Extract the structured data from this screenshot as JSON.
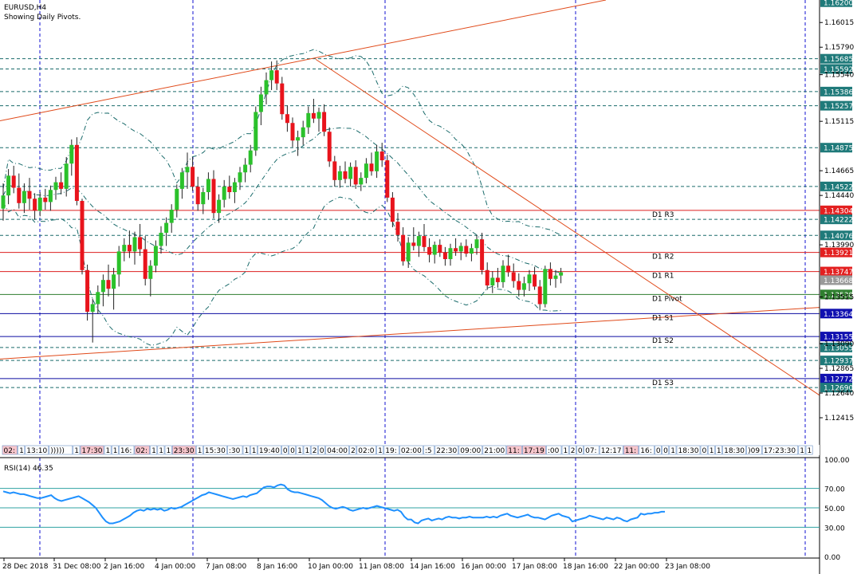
{
  "header": {
    "symbol": "EURUSD,H4",
    "subtitle": "Showing Daily Pivots."
  },
  "rsi": {
    "label": "RSI(14) 46.35",
    "levels": [
      70,
      50,
      30
    ],
    "axis_ticks": [
      "100.00",
      "70.00",
      "50.00",
      "30.00",
      "0.00"
    ],
    "values": [
      67,
      66,
      65,
      66,
      65,
      64,
      64,
      63,
      62,
      61,
      60,
      60,
      61,
      62,
      63,
      60,
      58,
      57,
      58,
      59,
      60,
      61,
      62,
      60,
      58,
      56,
      53,
      50,
      45,
      40,
      36,
      34,
      34,
      35,
      36,
      38,
      40,
      42,
      45,
      47,
      48,
      47,
      49,
      48,
      49,
      48,
      49,
      47,
      48,
      50,
      49,
      50,
      51,
      53,
      55,
      57,
      59,
      61,
      63,
      64,
      66,
      65,
      64,
      63,
      62,
      61,
      60,
      59,
      60,
      61,
      62,
      61,
      63,
      64,
      65,
      68,
      71,
      72,
      72,
      71,
      73,
      74,
      73,
      69,
      67,
      66,
      66,
      65,
      64,
      63,
      62,
      61,
      60,
      58,
      55,
      52,
      50,
      49,
      50,
      51,
      50,
      48,
      47,
      48,
      49,
      50,
      49,
      50,
      51,
      52,
      51,
      50,
      49,
      48,
      47,
      48,
      46,
      41,
      38,
      38,
      35,
      34,
      37,
      38,
      39,
      37,
      38,
      39,
      38,
      40,
      41,
      40,
      40,
      39,
      40,
      40,
      41,
      40,
      40,
      40,
      40,
      41,
      40,
      41,
      40,
      42,
      43,
      44,
      42,
      41,
      40,
      41,
      42,
      43,
      41,
      40,
      40,
      39,
      38,
      40,
      42,
      43,
      44,
      42,
      41,
      40,
      36,
      37,
      38,
      39,
      40,
      42,
      41,
      40,
      39,
      38,
      40,
      39,
      38,
      40,
      39,
      37,
      36,
      38,
      39,
      40,
      44,
      43,
      44,
      44,
      45,
      45,
      46,
      46
    ]
  },
  "price_axis": {
    "ticks": [
      "1.16015",
      "1.15790",
      "1.15540",
      "1.15115",
      "1.14665",
      "1.14440",
      "1.13990",
      "1.13515",
      "1.13090",
      "1.12865",
      "1.12640",
      "1.12415"
    ],
    "min": 1.1219,
    "max": 1.1622
  },
  "price_levels": [
    {
      "label": "1.16200",
      "value": 1.162,
      "style": "dark",
      "line": "none"
    },
    {
      "label": "1.15685",
      "value": 1.15685,
      "style": "teal",
      "line": "dash"
    },
    {
      "label": "1.15592",
      "value": 1.15592,
      "style": "teal",
      "line": "dash"
    },
    {
      "label": "1.15386",
      "value": 1.15386,
      "style": "teal",
      "line": "dash"
    },
    {
      "label": "1.15257",
      "value": 1.15257,
      "style": "teal",
      "line": "dash"
    },
    {
      "label": "1.14875",
      "value": 1.14875,
      "style": "teal",
      "line": "dash"
    },
    {
      "label": "1.14522",
      "value": 1.14522,
      "style": "teal",
      "line": "dash"
    },
    {
      "label": "1.14304",
      "value": 1.14304,
      "style": "red",
      "line": "solid"
    },
    {
      "label": "1.14222",
      "value": 1.14222,
      "style": "teal",
      "line": "dash"
    },
    {
      "label": "1.14076",
      "value": 1.14076,
      "style": "teal",
      "line": "dash"
    },
    {
      "label": "1.13921",
      "value": 1.13921,
      "style": "red",
      "line": "solid"
    },
    {
      "label": "1.13747",
      "value": 1.13747,
      "style": "red",
      "line": "solid"
    },
    {
      "label": "1.13668",
      "value": 1.13668,
      "style": "grey",
      "line": "none"
    },
    {
      "label": "1.13538",
      "value": 1.13538,
      "style": "green",
      "line": "solid"
    },
    {
      "label": "1.13364",
      "value": 1.13364,
      "style": "blue",
      "line": "solid"
    },
    {
      "label": "1.13155",
      "value": 1.13155,
      "style": "blue",
      "line": "solid"
    },
    {
      "label": "1.13055",
      "value": 1.13055,
      "style": "teal",
      "line": "dash"
    },
    {
      "label": "1.12937",
      "value": 1.12937,
      "style": "teal",
      "line": "dash"
    },
    {
      "label": "1.12772",
      "value": 1.12772,
      "style": "blue",
      "line": "solid"
    },
    {
      "label": "1.12690",
      "value": 1.1269,
      "style": "teal",
      "line": "dash"
    }
  ],
  "pivots": [
    {
      "label": "D1 R3",
      "value": 1.14304
    },
    {
      "label": "D1 R2",
      "value": 1.13921
    },
    {
      "label": "D1 R1",
      "value": 1.13747
    },
    {
      "label": "D1 Pivot",
      "value": 1.13538
    },
    {
      "label": "D1 S1",
      "value": 1.13364
    },
    {
      "label": "D1 S2",
      "value": 1.13155
    },
    {
      "label": "D1 S3",
      "value": 1.12772
    }
  ],
  "time_axis": {
    "labels": [
      "28 Dec 2018",
      "31 Dec 08:00",
      "2 Jan 16:00",
      "4 Jan 00:00",
      "7 Jan 08:00",
      "8 Jan 16:00",
      "10 Jan 00:00",
      "11 Jan 08:00",
      "14 Jan 16:00",
      "16 Jan 00:00",
      "17 Jan 08:00",
      "18 Jan 16:00",
      "22 Jan 00:00",
      "23 Jan 08:00"
    ]
  },
  "event_strip": [
    "02:",
    "1",
    "13:10",
    ")))))",
    "1",
    "17:30",
    "1",
    "1",
    "16:",
    "02:",
    "1",
    "1",
    "1",
    "23:30",
    "1",
    "15:30",
    ":30",
    "1",
    "1",
    "19:40",
    "0",
    "0",
    "1",
    "1",
    "2",
    "0",
    "04:00",
    "2",
    "02:0",
    "1",
    "19:",
    "02:00",
    ":5",
    "22:30",
    "09:00",
    "21:00",
    "11:",
    "17:19",
    ":00",
    "1",
    "2",
    "0",
    "07:",
    "12:17",
    "11:",
    "16:",
    "0",
    "0",
    "1",
    "18:30",
    "0",
    "1",
    "1",
    "18:30",
    ")09",
    "17:23:30",
    "17:30",
    "1",
    "1",
    "22:30"
  ],
  "colors": {
    "bull": "#2bc12b",
    "bear": "#e8141c",
    "grid": "#1010d0",
    "teal": "#1a6b6b",
    "red_line": "#dd1f1f",
    "blue_line": "#0b0ba0",
    "green_line": "#2e7d2e",
    "trend": "#e04a1a",
    "rsi": "#1e90ff"
  },
  "chart_data": {
    "type": "candlestick",
    "symbol": "EURUSD",
    "timeframe": "H4",
    "ohlc": [
      [
        1.1432,
        1.1455,
        1.1421,
        1.1444
      ],
      [
        1.1444,
        1.1468,
        1.1436,
        1.1462
      ],
      [
        1.1462,
        1.1471,
        1.1446,
        1.1451
      ],
      [
        1.1451,
        1.1464,
        1.1432,
        1.1437
      ],
      [
        1.1437,
        1.1455,
        1.1428,
        1.1448
      ],
      [
        1.1448,
        1.146,
        1.1431,
        1.1441
      ],
      [
        1.1441,
        1.1446,
        1.1422,
        1.143
      ],
      [
        1.143,
        1.1447,
        1.1425,
        1.1442
      ],
      [
        1.1442,
        1.145,
        1.1431,
        1.1438
      ],
      [
        1.1438,
        1.1453,
        1.143,
        1.1449
      ],
      [
        1.1449,
        1.1461,
        1.144,
        1.1456
      ],
      [
        1.1456,
        1.1465,
        1.1445,
        1.145
      ],
      [
        1.145,
        1.1479,
        1.1443,
        1.1473
      ],
      [
        1.1473,
        1.1495,
        1.1462,
        1.149
      ],
      [
        1.149,
        1.1497,
        1.1435,
        1.1439
      ],
      [
        1.1439,
        1.1441,
        1.1372,
        1.1376
      ],
      [
        1.1376,
        1.1381,
        1.133,
        1.1338
      ],
      [
        1.1338,
        1.135,
        1.131,
        1.1345
      ],
      [
        1.1345,
        1.1362,
        1.1336,
        1.1356
      ],
      [
        1.1356,
        1.1372,
        1.1343,
        1.1367
      ],
      [
        1.1367,
        1.1381,
        1.1352,
        1.1359
      ],
      [
        1.1359,
        1.1378,
        1.134,
        1.1372
      ],
      [
        1.1372,
        1.1398,
        1.1361,
        1.1393
      ],
      [
        1.1393,
        1.1405,
        1.1384,
        1.1399
      ],
      [
        1.1399,
        1.1412,
        1.1387,
        1.1393
      ],
      [
        1.1393,
        1.1411,
        1.1381,
        1.1406
      ],
      [
        1.1406,
        1.1418,
        1.1389,
        1.1395
      ],
      [
        1.1395,
        1.1407,
        1.1362,
        1.1368
      ],
      [
        1.1368,
        1.1385,
        1.1352,
        1.138
      ],
      [
        1.138,
        1.1403,
        1.1374,
        1.1398
      ],
      [
        1.1398,
        1.1416,
        1.1391,
        1.141
      ],
      [
        1.141,
        1.1424,
        1.1398,
        1.1419
      ],
      [
        1.1419,
        1.1436,
        1.141,
        1.1431
      ],
      [
        1.1431,
        1.1454,
        1.1424,
        1.145
      ],
      [
        1.145,
        1.1469,
        1.1441,
        1.1465
      ],
      [
        1.1465,
        1.1483,
        1.145,
        1.147
      ],
      [
        1.147,
        1.1479,
        1.1448,
        1.1452
      ],
      [
        1.1452,
        1.1461,
        1.143,
        1.1436
      ],
      [
        1.1436,
        1.1451,
        1.1427,
        1.1447
      ],
      [
        1.1447,
        1.1465,
        1.144,
        1.1459
      ],
      [
        1.1459,
        1.1467,
        1.1423,
        1.1428
      ],
      [
        1.1428,
        1.1445,
        1.1419,
        1.144
      ],
      [
        1.144,
        1.1458,
        1.1433,
        1.1452
      ],
      [
        1.1452,
        1.1462,
        1.1441,
        1.1447
      ],
      [
        1.1447,
        1.146,
        1.1437,
        1.1456
      ],
      [
        1.1456,
        1.147,
        1.1449,
        1.1465
      ],
      [
        1.1465,
        1.1478,
        1.1456,
        1.1472
      ],
      [
        1.1472,
        1.149,
        1.1465,
        1.1485
      ],
      [
        1.1485,
        1.1525,
        1.148,
        1.152
      ],
      [
        1.152,
        1.1543,
        1.1508,
        1.1536
      ],
      [
        1.1536,
        1.1556,
        1.1527,
        1.1549
      ],
      [
        1.1549,
        1.1566,
        1.154,
        1.1558
      ],
      [
        1.1558,
        1.1567,
        1.154,
        1.1546
      ],
      [
        1.1546,
        1.1552,
        1.1513,
        1.1518
      ],
      [
        1.1518,
        1.1526,
        1.1502,
        1.151
      ],
      [
        1.151,
        1.1515,
        1.1488,
        1.1494
      ],
      [
        1.1494,
        1.1503,
        1.148,
        1.1497
      ],
      [
        1.1497,
        1.1512,
        1.149,
        1.1506
      ],
      [
        1.1506,
        1.1525,
        1.15,
        1.1519
      ],
      [
        1.1519,
        1.1532,
        1.151,
        1.1514
      ],
      [
        1.1514,
        1.1524,
        1.1502,
        1.152
      ],
      [
        1.152,
        1.1527,
        1.1498,
        1.1502
      ],
      [
        1.1502,
        1.1506,
        1.147,
        1.1475
      ],
      [
        1.1475,
        1.148,
        1.1452,
        1.1458
      ],
      [
        1.1458,
        1.1471,
        1.1451,
        1.1466
      ],
      [
        1.1466,
        1.1475,
        1.1455,
        1.1459
      ],
      [
        1.1459,
        1.1474,
        1.1452,
        1.147
      ],
      [
        1.147,
        1.1476,
        1.145,
        1.1454
      ],
      [
        1.1454,
        1.1465,
        1.1448,
        1.146
      ],
      [
        1.146,
        1.1478,
        1.1455,
        1.1473
      ],
      [
        1.1473,
        1.1483,
        1.1462,
        1.1466
      ],
      [
        1.1466,
        1.149,
        1.146,
        1.1484
      ],
      [
        1.1484,
        1.1492,
        1.147,
        1.1476
      ],
      [
        1.1476,
        1.1481,
        1.1438,
        1.1442
      ],
      [
        1.1442,
        1.1447,
        1.1415,
        1.142
      ],
      [
        1.142,
        1.1428,
        1.1402,
        1.1408
      ],
      [
        1.1408,
        1.1415,
        1.138,
        1.1384
      ],
      [
        1.1384,
        1.1406,
        1.1378,
        1.1401
      ],
      [
        1.1401,
        1.1415,
        1.1394,
        1.1398
      ],
      [
        1.1398,
        1.1411,
        1.1388,
        1.1407
      ],
      [
        1.1407,
        1.1418,
        1.1393,
        1.1397
      ],
      [
        1.1397,
        1.1405,
        1.1383,
        1.139
      ],
      [
        1.139,
        1.1402,
        1.1382,
        1.1399
      ],
      [
        1.1399,
        1.1404,
        1.1388,
        1.1392
      ],
      [
        1.1392,
        1.1397,
        1.138,
        1.1386
      ],
      [
        1.1386,
        1.14,
        1.138,
        1.1396
      ],
      [
        1.1396,
        1.1405,
        1.1389,
        1.1393
      ],
      [
        1.1393,
        1.1401,
        1.1385,
        1.1398
      ],
      [
        1.1398,
        1.1404,
        1.1388,
        1.1391
      ],
      [
        1.1391,
        1.14,
        1.1384,
        1.1396
      ],
      [
        1.1396,
        1.1408,
        1.139,
        1.1404
      ],
      [
        1.1404,
        1.141,
        1.1372,
        1.1376
      ],
      [
        1.1376,
        1.1383,
        1.1358,
        1.1362
      ],
      [
        1.1362,
        1.1375,
        1.1355,
        1.1369
      ],
      [
        1.1369,
        1.1378,
        1.136,
        1.1365
      ],
      [
        1.1365,
        1.1385,
        1.136,
        1.138
      ],
      [
        1.138,
        1.139,
        1.137,
        1.1374
      ],
      [
        1.1374,
        1.1382,
        1.136,
        1.1366
      ],
      [
        1.1366,
        1.1373,
        1.1352,
        1.1358
      ],
      [
        1.1358,
        1.137,
        1.1352,
        1.1364
      ],
      [
        1.1364,
        1.1376,
        1.1357,
        1.1372
      ],
      [
        1.1372,
        1.1379,
        1.1358,
        1.1361
      ],
      [
        1.1361,
        1.1367,
        1.134,
        1.1345
      ],
      [
        1.1345,
        1.138,
        1.1342,
        1.1377
      ],
      [
        1.1377,
        1.1383,
        1.1362,
        1.1368
      ],
      [
        1.1368,
        1.1376,
        1.136,
        1.1371
      ],
      [
        1.1371,
        1.1378,
        1.1364,
        1.1374
      ]
    ],
    "annotations": [
      "D1 R3",
      "D1 R2",
      "D1 R1",
      "D1 Pivot",
      "D1 S1",
      "D1 S2",
      "D1 S3"
    ]
  }
}
